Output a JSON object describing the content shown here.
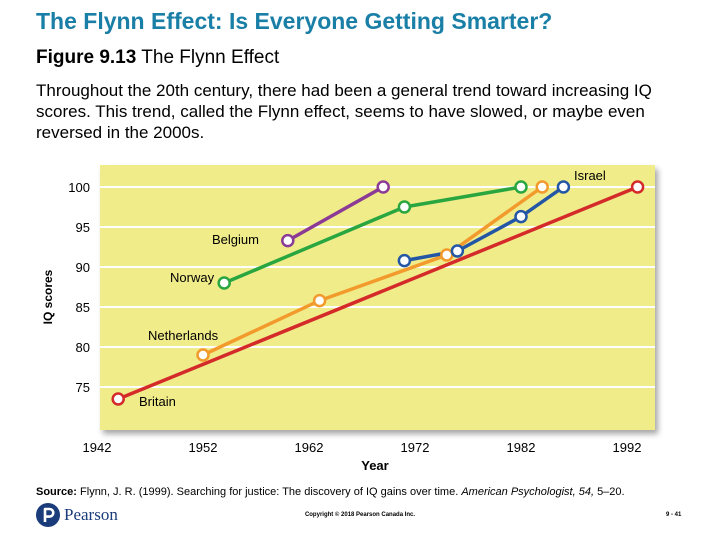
{
  "slide": {
    "title": "The Flynn Effect: Is Everyone Getting Smarter?",
    "figure_label": "Figure 9.13",
    "figure_title": "The Flynn Effect",
    "description": "Throughout the 20th century, there had been a general trend toward increasing IQ scores. This trend, called the Flynn effect, seems to have slowed, or maybe even reversed in the 2000s."
  },
  "chart_data": {
    "type": "line",
    "title": "",
    "xlabel": "Year",
    "ylabel": "IQ scores",
    "xlim": [
      1942,
      1992
    ],
    "ylim": [
      70,
      102
    ],
    "x_ticks": [
      "1942",
      "1952",
      "1962",
      "1972",
      "1982",
      "1992"
    ],
    "y_ticks": [
      "75",
      "80",
      "85",
      "90",
      "95",
      "100"
    ],
    "grid": "horizontal",
    "background": "#f0ec8a",
    "series": [
      {
        "name": "Britain",
        "color": "#d42a2a",
        "points": [
          [
            1944,
            73.5
          ],
          [
            1993,
            100
          ]
        ]
      },
      {
        "name": "Netherlands",
        "color": "#f39a2c",
        "points": [
          [
            1952,
            79
          ],
          [
            1963,
            85.8
          ],
          [
            1975,
            91.5
          ],
          [
            1984,
            100
          ]
        ]
      },
      {
        "name": "Norway",
        "color": "#2aa640",
        "points": [
          [
            1954,
            88
          ],
          [
            1971,
            97.5
          ],
          [
            1982,
            100
          ]
        ]
      },
      {
        "name": "Belgium",
        "color": "#8b3a96",
        "points": [
          [
            1960,
            93.3
          ],
          [
            1969,
            100
          ]
        ]
      },
      {
        "name": "Israel",
        "color": "#2456a6",
        "points": [
          [
            1971,
            90.8
          ],
          [
            1976,
            92
          ],
          [
            1982,
            96.3
          ],
          [
            1986,
            100
          ]
        ]
      }
    ]
  },
  "footer": {
    "source_label": "Source:",
    "source_text": "Flynn, J. R. (1999). Searching for justice: The discovery of IQ gains over time.",
    "source_journal": "American Psychologist, 54,",
    "source_pages": "5–20.",
    "logo_text": "Pearson",
    "copyright": "Copyright © 2018 Pearson Canada Inc.",
    "slide_number": "9 - 41"
  },
  "colors": {
    "title": "#1a7fa6",
    "logo": "#1a3c7a",
    "plot_background": "#f0ec8a",
    "gridline": "#ffffff"
  }
}
